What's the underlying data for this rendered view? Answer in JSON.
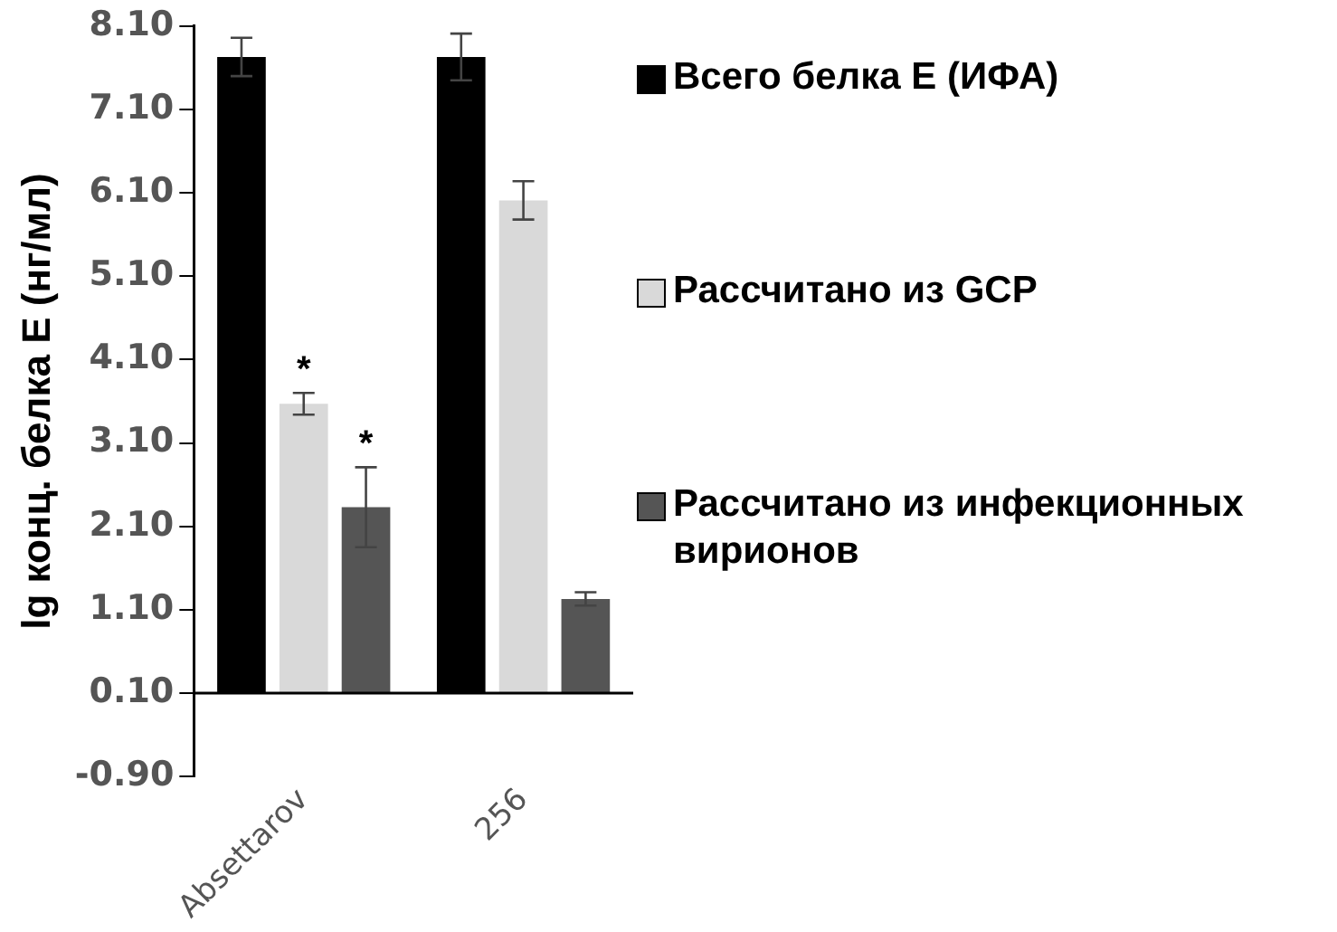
{
  "chart_data": {
    "type": "bar",
    "ylabel": "lg конц. белка E (нг/мл)",
    "categories": [
      "Absettarov",
      "256"
    ],
    "series": [
      {
        "name": "Всего белка E (ИФА)",
        "color": "#000000",
        "values": [
          7.63,
          7.63
        ],
        "base": [
          0.1,
          0.1
        ],
        "errors": [
          0.23,
          0.28
        ]
      },
      {
        "name": "Рассчитано из GCP",
        "color": "#d9d9d9",
        "values": [
          3.47,
          5.91
        ],
        "base": [
          0.1,
          0.1
        ],
        "errors": [
          0.13,
          0.23
        ]
      },
      {
        "name": "Рассчитано из инфекционных вирионов",
        "color": "#555555",
        "values": [
          2.23,
          1.13
        ],
        "base": [
          0.1,
          0.1
        ],
        "errors": [
          0.48,
          0.08
        ]
      }
    ],
    "ylim": [
      -0.9,
      8.1
    ],
    "yticks": [
      {
        "value": -0.9,
        "label": "-0.90"
      },
      {
        "value": 0.1,
        "label": "0.10"
      },
      {
        "value": 1.1,
        "label": "1.10"
      },
      {
        "value": 2.1,
        "label": "2.10"
      },
      {
        "value": 3.1,
        "label": "3.10"
      },
      {
        "value": 4.1,
        "label": "4.10"
      },
      {
        "value": 5.1,
        "label": "5.10"
      },
      {
        "value": 6.1,
        "label": "6.10"
      },
      {
        "value": 7.1,
        "label": "7.10"
      },
      {
        "value": 8.1,
        "label": "8.10"
      }
    ],
    "annotations": [
      "*",
      "*"
    ],
    "ref_lines": [
      {
        "axis": "y",
        "value": 0.1
      }
    ],
    "legend": "right"
  }
}
